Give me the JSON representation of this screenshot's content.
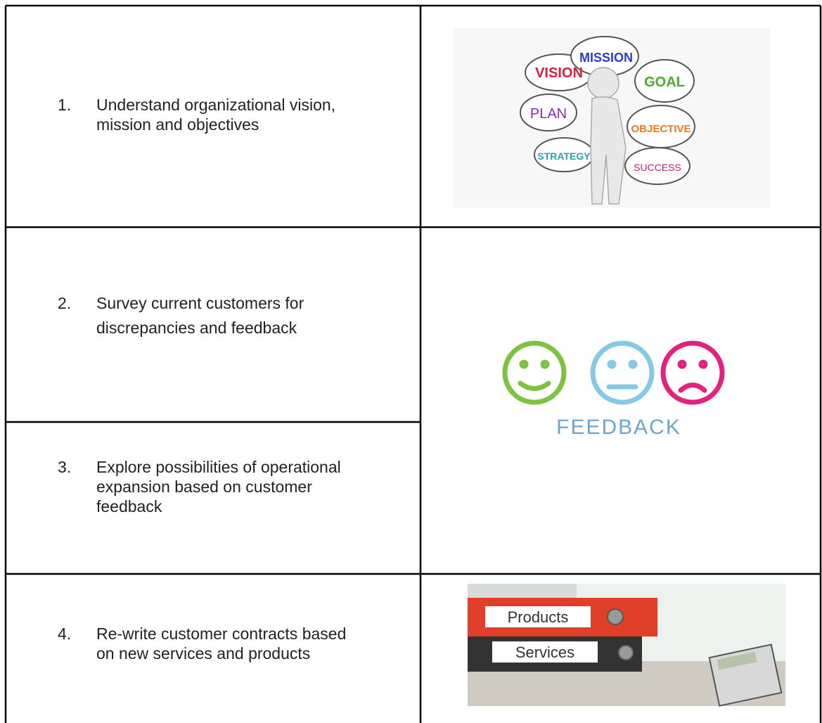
{
  "table": {
    "rows": [
      {
        "number": "1.",
        "lines": [
          "Understand organizational vision,",
          "mission and objectives"
        ]
      },
      {
        "number": "2.",
        "lines": [
          "Survey current customers for",
          "discrepancies and feedback"
        ]
      },
      {
        "number": "3.",
        "lines": [
          "Explore possibilities of operational",
          "expansion based on customer",
          "feedback"
        ]
      },
      {
        "number": "4.",
        "lines": [
          "Re-write customer contracts based",
          "on new services and products"
        ]
      }
    ]
  },
  "images": {
    "vision": {
      "words": [
        "VISION",
        "MISSION",
        "GOAL",
        "PLAN",
        "OBJECTIVE",
        "STRATEGY",
        "SUCCESS"
      ]
    },
    "feedback": {
      "label": "FEEDBACK"
    },
    "binders": {
      "labels": [
        "Products",
        "Services"
      ]
    }
  }
}
